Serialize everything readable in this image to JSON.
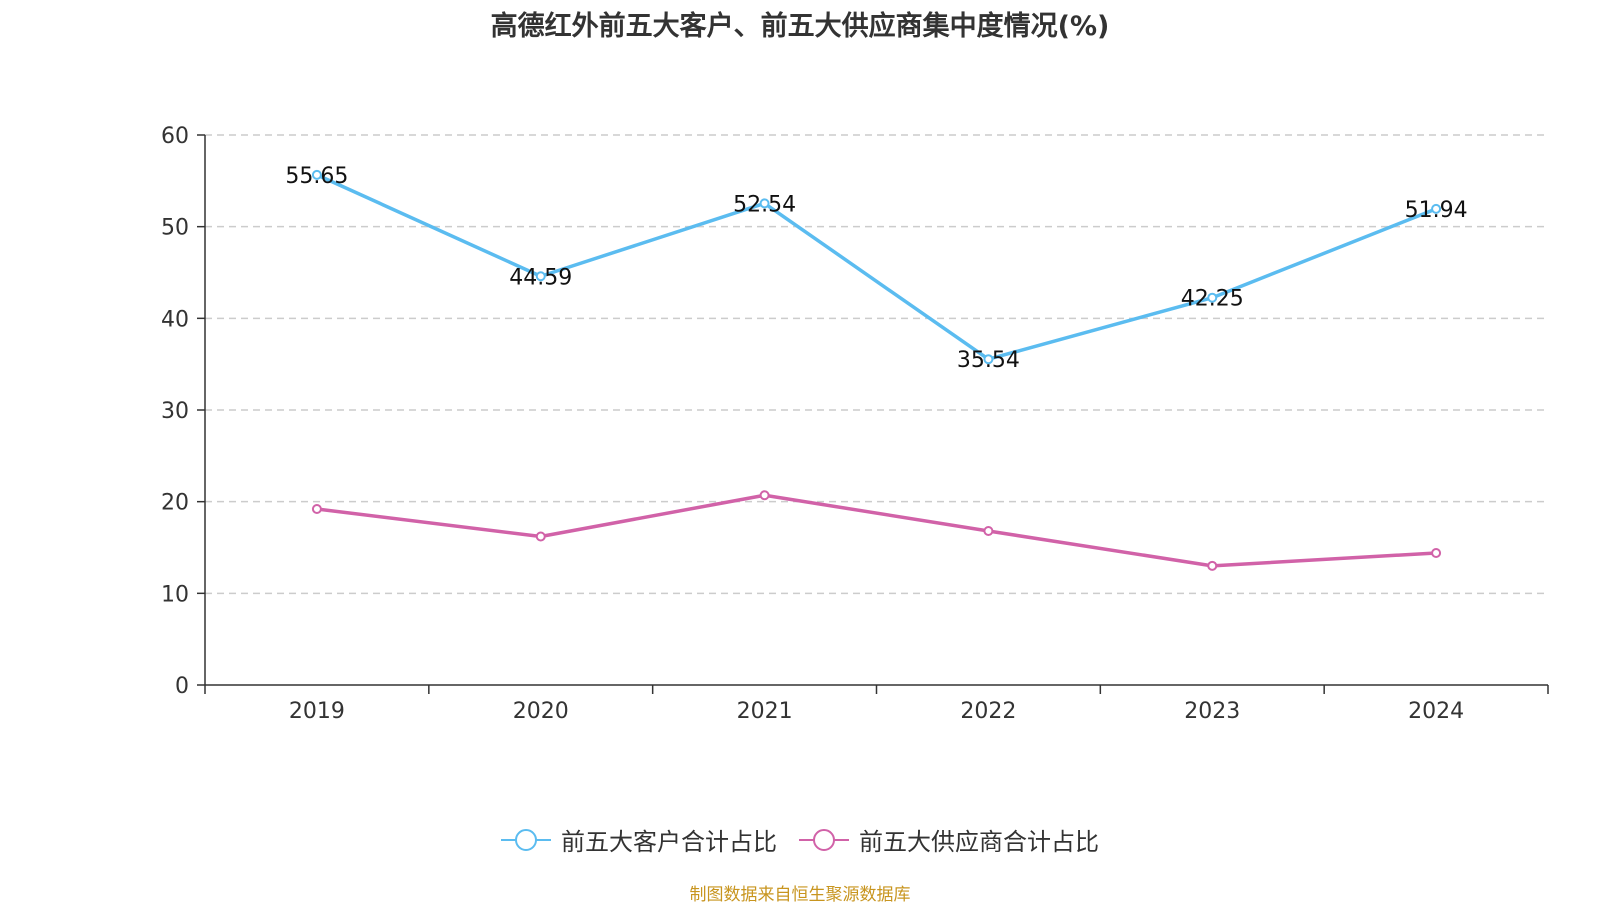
{
  "chart_data": {
    "type": "line",
    "title": "高德红外前五大客户、前五大供应商集中度情况(%)",
    "categories": [
      "2019",
      "2020",
      "2021",
      "2022",
      "2023",
      "2024"
    ],
    "ylim": [
      0,
      60
    ],
    "yticks": [
      0,
      10,
      20,
      30,
      40,
      50,
      60
    ],
    "grid": true,
    "legend_position": "bottom",
    "series": [
      {
        "name": "前五大客户合计占比",
        "color": "#5bbcf0",
        "values": [
          55.65,
          44.59,
          52.54,
          35.54,
          42.25,
          51.94
        ],
        "labels": [
          "55.65",
          "44.59",
          "52.54",
          "35.54",
          "42.25",
          "51.94"
        ]
      },
      {
        "name": "前五大供应商合计占比",
        "color": "#d162a8",
        "values": [
          19.2,
          16.2,
          20.7,
          16.8,
          13.0,
          14.4
        ],
        "labels": []
      }
    ]
  },
  "source_note": "制图数据来自恒生聚源数据库"
}
